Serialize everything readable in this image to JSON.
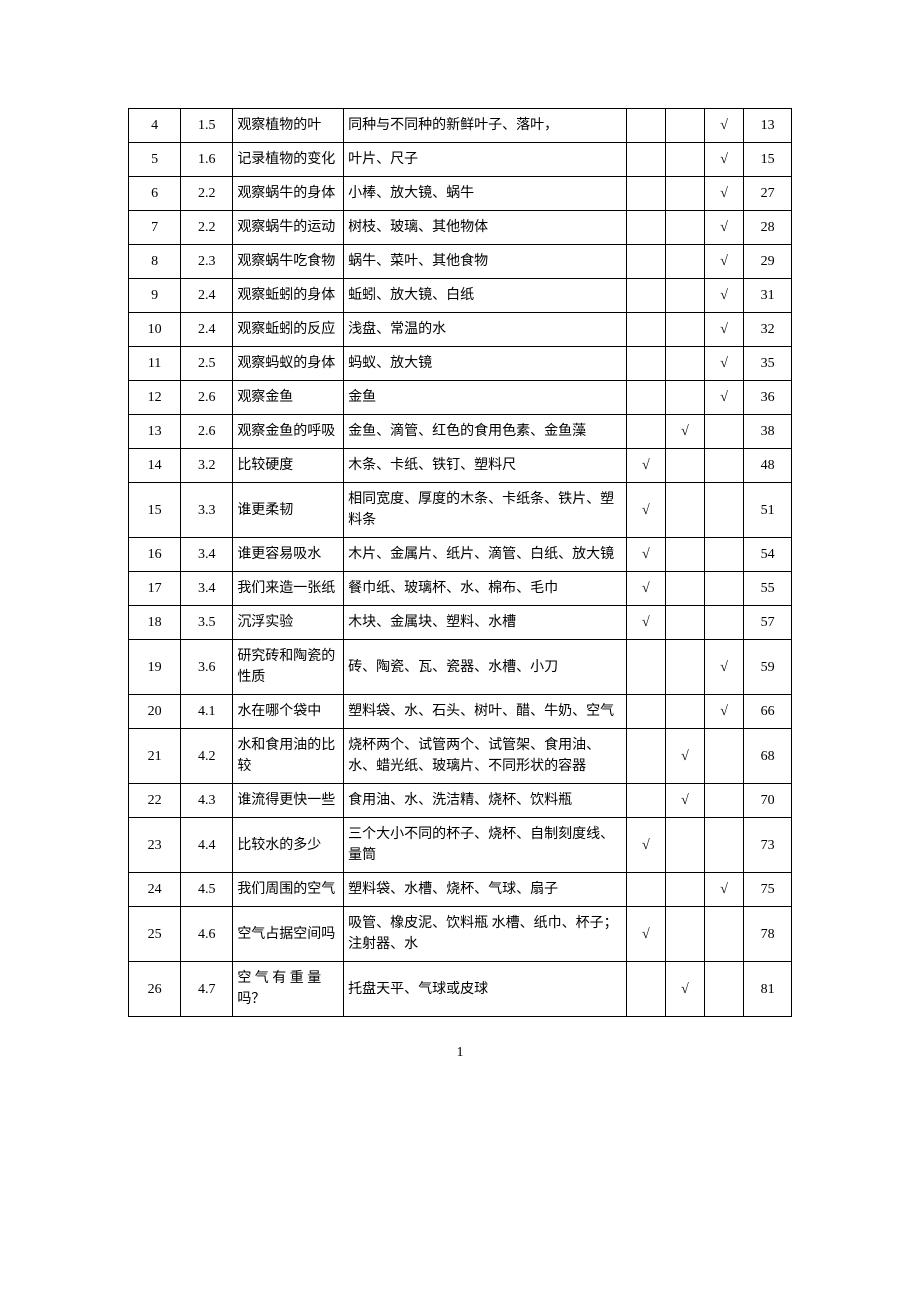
{
  "page_number": "1",
  "check_mark": "√",
  "rows": [
    {
      "idx": "4",
      "sec": "1.5",
      "name": "观察植物的叶",
      "mat": "同种与不同种的新鲜叶子、落叶，",
      "m1": "",
      "m2": "",
      "m3": "√",
      "pg": "13"
    },
    {
      "idx": "5",
      "sec": "1.6",
      "name": "记录植物的变化",
      "mat": "叶片、尺子",
      "m1": "",
      "m2": "",
      "m3": "√",
      "pg": "15"
    },
    {
      "idx": "6",
      "sec": "2.2",
      "name": "观察蜗牛的身体",
      "mat": "小棒、放大镜、蜗牛",
      "m1": "",
      "m2": "",
      "m3": "√",
      "pg": "27"
    },
    {
      "idx": "7",
      "sec": "2.2",
      "name": "观察蜗牛的运动",
      "mat": "树枝、玻璃、其他物体",
      "m1": "",
      "m2": "",
      "m3": "√",
      "pg": "28"
    },
    {
      "idx": "8",
      "sec": "2.3",
      "name": "观察蜗牛吃食物",
      "mat": "蜗牛、菜叶、其他食物",
      "m1": "",
      "m2": "",
      "m3": "√",
      "pg": "29"
    },
    {
      "idx": "9",
      "sec": "2.4",
      "name": "观察蚯蚓的身体",
      "mat": "蚯蚓、放大镜、白纸",
      "m1": "",
      "m2": "",
      "m3": "√",
      "pg": "31"
    },
    {
      "idx": "10",
      "sec": "2.4",
      "name": "观察蚯蚓的反应",
      "mat": "浅盘、常温的水",
      "m1": "",
      "m2": "",
      "m3": "√",
      "pg": "32"
    },
    {
      "idx": "11",
      "sec": "2.5",
      "name": "观察蚂蚁的身体",
      "mat": "蚂蚁、放大镜",
      "m1": "",
      "m2": "",
      "m3": "√",
      "pg": "35"
    },
    {
      "idx": "12",
      "sec": "2.6",
      "name": "观察金鱼",
      "mat": "金鱼",
      "m1": "",
      "m2": "",
      "m3": "√",
      "pg": "36"
    },
    {
      "idx": "13",
      "sec": "2.6",
      "name": "观察金鱼的呼吸",
      "mat": "金鱼、滴管、红色的食用色素、金鱼藻",
      "m1": "",
      "m2": "√",
      "m3": "",
      "pg": "38"
    },
    {
      "idx": "14",
      "sec": "3.2",
      "name": "比较硬度",
      "mat": "木条、卡纸、铁钉、塑料尺",
      "m1": "√",
      "m2": "",
      "m3": "",
      "pg": "48"
    },
    {
      "idx": "15",
      "sec": "3.3",
      "name": "谁更柔韧",
      "mat": "相同宽度、厚度的木条、卡纸条、铁片、塑料条",
      "m1": "√",
      "m2": "",
      "m3": "",
      "pg": "51"
    },
    {
      "idx": "16",
      "sec": "3.4",
      "name": "谁更容易吸水",
      "mat": "木片、金属片、纸片、滴管、白纸、放大镜",
      "m1": "√",
      "m2": "",
      "m3": "",
      "pg": "54"
    },
    {
      "idx": "17",
      "sec": "3.4",
      "name": "我们来造一张纸",
      "mat": "餐巾纸、玻璃杯、水、棉布、毛巾",
      "m1": "√",
      "m2": "",
      "m3": "",
      "pg": "55"
    },
    {
      "idx": "18",
      "sec": "3.5",
      "name": "沉浮实验",
      "mat": "木块、金属块、塑料、水槽",
      "m1": "√",
      "m2": "",
      "m3": "",
      "pg": "57"
    },
    {
      "idx": "19",
      "sec": "3.6",
      "name": "研究砖和陶瓷的性质",
      "mat": "砖、陶瓷、瓦、瓷器、水槽、小刀",
      "m1": "",
      "m2": "",
      "m3": "√",
      "pg": "59"
    },
    {
      "idx": "20",
      "sec": "4.1",
      "name": "水在哪个袋中",
      "mat": "塑料袋、水、石头、树叶、醋、牛奶、空气",
      "m1": "",
      "m2": "",
      "m3": "√",
      "pg": "66"
    },
    {
      "idx": "21",
      "sec": "4.2",
      "name": "水和食用油的比较",
      "mat": "烧杯两个、试管两个、试管架、食用油、水、蜡光纸、玻璃片、不同形状的容器",
      "m1": "",
      "m2": "√",
      "m3": "",
      "pg": "68"
    },
    {
      "idx": "22",
      "sec": "4.3",
      "name": "谁流得更快一些",
      "mat": "食用油、水、洗洁精、烧杯、饮料瓶",
      "m1": "",
      "m2": "√",
      "m3": "",
      "pg": "70"
    },
    {
      "idx": "23",
      "sec": "4.4",
      "name": "比较水的多少",
      "mat": "三个大小不同的杯子、烧杯、自制刻度线、量筒",
      "m1": "√",
      "m2": "",
      "m3": "",
      "pg": "73"
    },
    {
      "idx": "24",
      "sec": "4.5",
      "name": "我们周围的空气",
      "mat": "塑料袋、水槽、烧杯、气球、扇子",
      "m1": "",
      "m2": "",
      "m3": "√",
      "pg": "75"
    },
    {
      "idx": "25",
      "sec": "4.6",
      "name": "空气占据空间吗",
      "mat": "吸管、橡皮泥、饮料瓶 水槽、纸巾、杯子；注射器、水",
      "m1": "√",
      "m2": "",
      "m3": "",
      "pg": "78"
    },
    {
      "idx": "26",
      "sec": "4.7",
      "name": "空 气 有 重 量吗？",
      "mat": "托盘天平、气球或皮球",
      "m1": "",
      "m2": "√",
      "m3": "",
      "pg": "81"
    }
  ]
}
